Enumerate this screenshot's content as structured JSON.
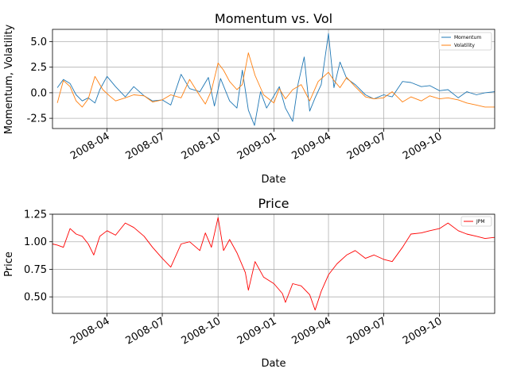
{
  "colors": {
    "momentum": "#1f77b4",
    "volatility": "#ff7f0e",
    "price": "#ff0000",
    "grid": "#b0b0b0"
  },
  "chart_data": [
    {
      "type": "line",
      "title": "Momentum vs. Vol",
      "xlabel": "Date",
      "ylabel": "Momentum, Volatility",
      "grid": true,
      "legend_position": "top-right",
      "x_range": [
        "2008-01-02",
        "2009-12-31"
      ],
      "x_tick_labels": [
        "2008-04",
        "2008-07",
        "2008-10",
        "2009-01",
        "2009-04",
        "2009-07",
        "2009-10"
      ],
      "y_tick_labels": [
        "5.0",
        "2.5",
        "0.0",
        "-2.5"
      ],
      "ylim": [
        -3.5,
        6.2
      ],
      "series": [
        {
          "name": "Momentum",
          "color": "#1f77b4",
          "points": [
            [
              "2008-01-10",
              0.5
            ],
            [
              "2008-01-20",
              1.3
            ],
            [
              "2008-01-31",
              0.9
            ],
            [
              "2008-02-10",
              -0.2
            ],
            [
              "2008-02-20",
              -0.8
            ],
            [
              "2008-03-01",
              -0.5
            ],
            [
              "2008-03-12",
              -1.0
            ],
            [
              "2008-03-20",
              0.3
            ],
            [
              "2008-04-01",
              1.6
            ],
            [
              "2008-04-15",
              0.6
            ],
            [
              "2008-05-01",
              -0.4
            ],
            [
              "2008-05-15",
              0.6
            ],
            [
              "2008-06-01",
              -0.3
            ],
            [
              "2008-06-15",
              -0.8
            ],
            [
              "2008-07-01",
              -0.7
            ],
            [
              "2008-07-15",
              -1.2
            ],
            [
              "2008-08-01",
              1.8
            ],
            [
              "2008-08-15",
              0.4
            ],
            [
              "2008-09-01",
              0.1
            ],
            [
              "2008-09-15",
              1.5
            ],
            [
              "2008-09-25",
              -1.3
            ],
            [
              "2008-10-05",
              1.4
            ],
            [
              "2008-10-20",
              -0.8
            ],
            [
              "2008-11-01",
              -1.5
            ],
            [
              "2008-11-10",
              2.2
            ],
            [
              "2008-11-20",
              -1.7
            ],
            [
              "2008-11-30",
              -3.2
            ],
            [
              "2008-12-10",
              0.1
            ],
            [
              "2008-12-20",
              -1.5
            ],
            [
              "2009-01-01",
              -0.3
            ],
            [
              "2009-01-10",
              0.6
            ],
            [
              "2009-01-20",
              -1.5
            ],
            [
              "2009-02-01",
              -2.8
            ],
            [
              "2009-02-10",
              0.9
            ],
            [
              "2009-02-20",
              3.5
            ],
            [
              "2009-03-01",
              -1.8
            ],
            [
              "2009-03-10",
              -0.5
            ],
            [
              "2009-03-20",
              0.8
            ],
            [
              "2009-04-01",
              5.8
            ],
            [
              "2009-04-10",
              0.5
            ],
            [
              "2009-04-20",
              3.0
            ],
            [
              "2009-05-01",
              1.4
            ],
            [
              "2009-05-15",
              0.8
            ],
            [
              "2009-06-01",
              -0.2
            ],
            [
              "2009-06-15",
              -0.6
            ],
            [
              "2009-07-01",
              -0.2
            ],
            [
              "2009-07-15",
              -0.4
            ],
            [
              "2009-08-01",
              1.1
            ],
            [
              "2009-08-15",
              1.0
            ],
            [
              "2009-09-01",
              0.6
            ],
            [
              "2009-09-15",
              0.7
            ],
            [
              "2009-10-01",
              0.2
            ],
            [
              "2009-10-15",
              0.3
            ],
            [
              "2009-11-01",
              -0.5
            ],
            [
              "2009-11-15",
              0.1
            ],
            [
              "2009-12-01",
              -0.2
            ],
            [
              "2009-12-15",
              0.0
            ],
            [
              "2009-12-31",
              0.1
            ]
          ]
        },
        {
          "name": "Volatility",
          "color": "#ff7f0e",
          "points": [
            [
              "2008-01-10",
              -1.0
            ],
            [
              "2008-01-20",
              1.2
            ],
            [
              "2008-01-31",
              0.6
            ],
            [
              "2008-02-10",
              -0.8
            ],
            [
              "2008-02-20",
              -1.4
            ],
            [
              "2008-03-01",
              -0.6
            ],
            [
              "2008-03-12",
              1.6
            ],
            [
              "2008-03-25",
              0.3
            ],
            [
              "2008-04-05",
              -0.3
            ],
            [
              "2008-04-15",
              -0.8
            ],
            [
              "2008-05-01",
              -0.5
            ],
            [
              "2008-05-15",
              -0.2
            ],
            [
              "2008-06-01",
              -0.3
            ],
            [
              "2008-06-15",
              -0.9
            ],
            [
              "2008-07-01",
              -0.7
            ],
            [
              "2008-07-15",
              -0.2
            ],
            [
              "2008-08-01",
              -0.5
            ],
            [
              "2008-08-15",
              1.3
            ],
            [
              "2008-09-01",
              -0.3
            ],
            [
              "2008-09-10",
              -1.1
            ],
            [
              "2008-09-20",
              0.2
            ],
            [
              "2008-10-01",
              2.9
            ],
            [
              "2008-10-10",
              2.2
            ],
            [
              "2008-10-20",
              1.1
            ],
            [
              "2008-11-01",
              0.3
            ],
            [
              "2008-11-10",
              0.8
            ],
            [
              "2008-11-20",
              3.9
            ],
            [
              "2008-12-01",
              1.7
            ],
            [
              "2008-12-15",
              -0.2
            ],
            [
              "2009-01-01",
              -1.0
            ],
            [
              "2009-01-10",
              0.4
            ],
            [
              "2009-01-20",
              -0.6
            ],
            [
              "2009-02-01",
              0.3
            ],
            [
              "2009-02-15",
              0.8
            ],
            [
              "2009-03-01",
              -0.8
            ],
            [
              "2009-03-15",
              1.1
            ],
            [
              "2009-04-01",
              2.0
            ],
            [
              "2009-04-10",
              1.2
            ],
            [
              "2009-04-20",
              0.5
            ],
            [
              "2009-05-01",
              1.5
            ],
            [
              "2009-05-15",
              0.6
            ],
            [
              "2009-06-01",
              -0.4
            ],
            [
              "2009-06-15",
              -0.6
            ],
            [
              "2009-07-01",
              -0.5
            ],
            [
              "2009-07-15",
              0.1
            ],
            [
              "2009-08-01",
              -0.9
            ],
            [
              "2009-08-15",
              -0.4
            ],
            [
              "2009-09-01",
              -0.8
            ],
            [
              "2009-09-15",
              -0.3
            ],
            [
              "2009-10-01",
              -0.6
            ],
            [
              "2009-10-15",
              -0.5
            ],
            [
              "2009-11-01",
              -0.7
            ],
            [
              "2009-11-15",
              -1.0
            ],
            [
              "2009-12-01",
              -1.2
            ],
            [
              "2009-12-15",
              -1.4
            ],
            [
              "2009-12-31",
              -1.4
            ]
          ]
        }
      ]
    },
    {
      "type": "line",
      "title": "Price",
      "xlabel": "Date",
      "ylabel": "Price",
      "grid": true,
      "legend_position": "top-right",
      "x_range": [
        "2008-01-02",
        "2009-12-31"
      ],
      "x_tick_labels": [
        "2008-04",
        "2008-07",
        "2008-10",
        "2009-01",
        "2009-04",
        "2009-07",
        "2009-10"
      ],
      "y_tick_labels": [
        "1.25",
        "1.00",
        "0.75",
        "0.50"
      ],
      "ylim": [
        0.35,
        1.25
      ],
      "series": [
        {
          "name": "JPM",
          "color": "#ff0000",
          "points": [
            [
              "2008-01-02",
              0.98
            ],
            [
              "2008-01-10",
              0.97
            ],
            [
              "2008-01-20",
              0.95
            ],
            [
              "2008-01-31",
              1.12
            ],
            [
              "2008-02-10",
              1.07
            ],
            [
              "2008-02-20",
              1.05
            ],
            [
              "2008-03-01",
              0.98
            ],
            [
              "2008-03-10",
              0.88
            ],
            [
              "2008-03-20",
              1.05
            ],
            [
              "2008-04-01",
              1.1
            ],
            [
              "2008-04-15",
              1.06
            ],
            [
              "2008-05-01",
              1.17
            ],
            [
              "2008-05-15",
              1.13
            ],
            [
              "2008-06-01",
              1.05
            ],
            [
              "2008-06-15",
              0.95
            ],
            [
              "2008-07-01",
              0.85
            ],
            [
              "2008-07-15",
              0.77
            ],
            [
              "2008-08-01",
              0.98
            ],
            [
              "2008-08-15",
              1.0
            ],
            [
              "2008-09-01",
              0.92
            ],
            [
              "2008-09-10",
              1.08
            ],
            [
              "2008-09-20",
              0.95
            ],
            [
              "2008-10-01",
              1.22
            ],
            [
              "2008-10-10",
              0.92
            ],
            [
              "2008-10-20",
              1.02
            ],
            [
              "2008-11-01",
              0.9
            ],
            [
              "2008-11-15",
              0.72
            ],
            [
              "2008-11-20",
              0.56
            ],
            [
              "2008-12-01",
              0.82
            ],
            [
              "2008-12-15",
              0.68
            ],
            [
              "2009-01-01",
              0.62
            ],
            [
              "2009-01-15",
              0.53
            ],
            [
              "2009-01-20",
              0.45
            ],
            [
              "2009-02-01",
              0.62
            ],
            [
              "2009-02-15",
              0.6
            ],
            [
              "2009-03-01",
              0.52
            ],
            [
              "2009-03-10",
              0.38
            ],
            [
              "2009-03-20",
              0.55
            ],
            [
              "2009-04-01",
              0.7
            ],
            [
              "2009-04-15",
              0.8
            ],
            [
              "2009-05-01",
              0.88
            ],
            [
              "2009-05-15",
              0.92
            ],
            [
              "2009-06-01",
              0.85
            ],
            [
              "2009-06-15",
              0.88
            ],
            [
              "2009-07-01",
              0.84
            ],
            [
              "2009-07-15",
              0.82
            ],
            [
              "2009-08-01",
              0.95
            ],
            [
              "2009-08-15",
              1.07
            ],
            [
              "2009-09-01",
              1.08
            ],
            [
              "2009-09-15",
              1.1
            ],
            [
              "2009-10-01",
              1.12
            ],
            [
              "2009-10-15",
              1.17
            ],
            [
              "2009-11-01",
              1.1
            ],
            [
              "2009-11-15",
              1.07
            ],
            [
              "2009-12-01",
              1.05
            ],
            [
              "2009-12-15",
              1.03
            ],
            [
              "2009-12-31",
              1.04
            ]
          ]
        }
      ]
    }
  ]
}
